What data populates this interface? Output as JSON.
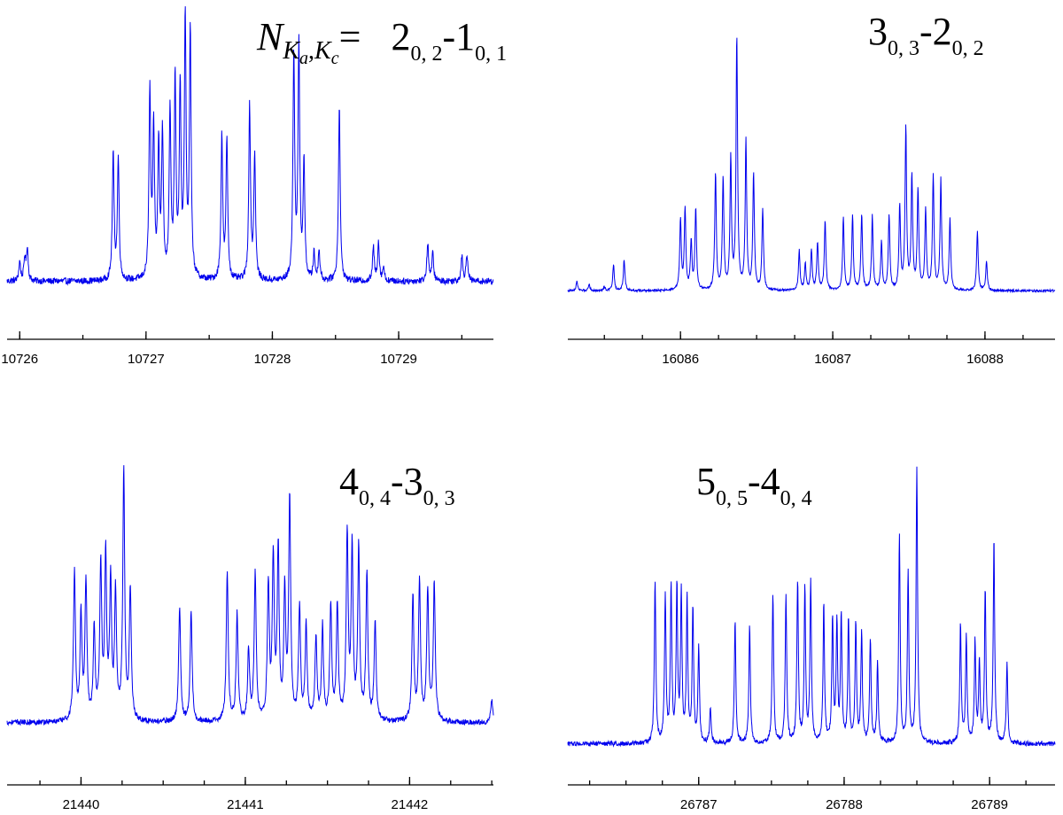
{
  "figure": {
    "line_color": "#0000ee",
    "axis_color": "#000000",
    "background": "#ffffff"
  },
  "chart_data": [
    {
      "type": "line",
      "title": {
        "prefix": "N",
        "prefix_sub": "K",
        "prefix_sub_a": "a",
        "prefix_sub_sep": ",",
        "prefix_sub_k2": "K",
        "prefix_sub_c": "c",
        "eq": "=",
        "upper": "2",
        "upper_sub": "0,2",
        "dash": "-",
        "lower": "1",
        "lower_sub": "0,1"
      },
      "xlim": [
        10725.9,
        10729.75
      ],
      "ylim": [
        0,
        1
      ],
      "xticks": [
        10726,
        10727,
        10728,
        10729
      ],
      "xtick_labels": [
        "10726",
        "10727",
        "10728",
        "10729"
      ],
      "minor_step": 0.5,
      "baseline": 0.04,
      "noise": 0.012,
      "gamma": 0.008,
      "peaks": [
        [
          10726.0,
          0.11
        ],
        [
          10726.04,
          0.12
        ],
        [
          10726.06,
          0.16
        ],
        [
          10726.74,
          0.5
        ],
        [
          10726.78,
          0.48
        ],
        [
          10727.03,
          0.72
        ],
        [
          10727.06,
          0.58
        ],
        [
          10727.1,
          0.52
        ],
        [
          10727.13,
          0.56
        ],
        [
          10727.19,
          0.65
        ],
        [
          10727.23,
          0.75
        ],
        [
          10727.27,
          0.72
        ],
        [
          10727.31,
          0.98
        ],
        [
          10727.35,
          0.94
        ],
        [
          10727.6,
          0.57
        ],
        [
          10727.64,
          0.55
        ],
        [
          10727.82,
          0.67
        ],
        [
          10727.86,
          0.49
        ],
        [
          10728.17,
          0.86
        ],
        [
          10728.21,
          0.88
        ],
        [
          10728.25,
          0.46
        ],
        [
          10728.33,
          0.14
        ],
        [
          10728.37,
          0.15
        ],
        [
          10728.53,
          0.68
        ],
        [
          10728.8,
          0.16
        ],
        [
          10728.84,
          0.18
        ],
        [
          10728.88,
          0.09
        ],
        [
          10729.23,
          0.18
        ],
        [
          10729.27,
          0.14
        ],
        [
          10729.5,
          0.13
        ],
        [
          10729.54,
          0.14
        ]
      ]
    },
    {
      "type": "line",
      "title": {
        "upper": "3",
        "upper_sub": "0,3",
        "dash": "-",
        "lower": "2",
        "lower_sub": "0,2"
      },
      "xlim": [
        85.26,
        88.46
      ],
      "x_offset": 16000,
      "ylim": [
        0,
        1
      ],
      "xticks": [
        16086,
        16087,
        16088
      ],
      "xtick_labels": [
        "16086",
        "16087",
        "16088"
      ],
      "minor_step": 0.25,
      "baseline": 0.025,
      "noise": 0.004,
      "gamma": 0.006,
      "peaks": [
        [
          85.32,
          0.06
        ],
        [
          85.4,
          0.05
        ],
        [
          85.5,
          0.04
        ],
        [
          85.56,
          0.12
        ],
        [
          85.63,
          0.14
        ],
        [
          86.0,
          0.28
        ],
        [
          86.03,
          0.32
        ],
        [
          86.07,
          0.2
        ],
        [
          86.1,
          0.32
        ],
        [
          86.23,
          0.45
        ],
        [
          86.28,
          0.43
        ],
        [
          86.33,
          0.5
        ],
        [
          86.37,
          0.95
        ],
        [
          86.43,
          0.57
        ],
        [
          86.48,
          0.45
        ],
        [
          86.54,
          0.32
        ],
        [
          86.78,
          0.17
        ],
        [
          86.82,
          0.12
        ],
        [
          86.86,
          0.17
        ],
        [
          86.9,
          0.2
        ],
        [
          86.95,
          0.28
        ],
        [
          87.07,
          0.29
        ],
        [
          87.13,
          0.3
        ],
        [
          87.19,
          0.3
        ],
        [
          87.26,
          0.3
        ],
        [
          87.32,
          0.2
        ],
        [
          87.37,
          0.3
        ],
        [
          87.44,
          0.33
        ],
        [
          87.48,
          0.62
        ],
        [
          87.52,
          0.44
        ],
        [
          87.56,
          0.39
        ],
        [
          87.61,
          0.32
        ],
        [
          87.66,
          0.44
        ],
        [
          87.71,
          0.43
        ],
        [
          87.77,
          0.29
        ],
        [
          87.95,
          0.24
        ],
        [
          88.01,
          0.13
        ]
      ]
    },
    {
      "type": "line",
      "title": {
        "upper": "4",
        "upper_sub": "0,4",
        "dash": "-",
        "lower": "3",
        "lower_sub": "0,3"
      },
      "xlim": [
        21439.55,
        21442.51
      ],
      "ylim": [
        0,
        1
      ],
      "xticks": [
        21440,
        21441,
        21442
      ],
      "xtick_labels": [
        "21440",
        "21441",
        "21442"
      ],
      "minor_step": 0.25,
      "baseline": 0.04,
      "noise": 0.01,
      "gamma": 0.007,
      "peaks": [
        [
          21439.96,
          0.58
        ],
        [
          21440.0,
          0.42
        ],
        [
          21440.03,
          0.55
        ],
        [
          21440.08,
          0.37
        ],
        [
          21440.12,
          0.6
        ],
        [
          21440.15,
          0.63
        ],
        [
          21440.18,
          0.55
        ],
        [
          21440.21,
          0.5
        ],
        [
          21440.26,
          0.95
        ],
        [
          21440.3,
          0.52
        ],
        [
          21440.6,
          0.46
        ],
        [
          21440.67,
          0.45
        ],
        [
          21440.89,
          0.58
        ],
        [
          21440.95,
          0.43
        ],
        [
          21441.02,
          0.3
        ],
        [
          21441.06,
          0.58
        ],
        [
          21441.14,
          0.53
        ],
        [
          21441.17,
          0.63
        ],
        [
          21441.2,
          0.66
        ],
        [
          21441.24,
          0.5
        ],
        [
          21441.27,
          0.85
        ],
        [
          21441.33,
          0.45
        ],
        [
          21441.37,
          0.39
        ],
        [
          21441.43,
          0.34
        ],
        [
          21441.47,
          0.38
        ],
        [
          21441.52,
          0.46
        ],
        [
          21441.56,
          0.46
        ],
        [
          21441.62,
          0.72
        ],
        [
          21441.65,
          0.66
        ],
        [
          21441.69,
          0.68
        ],
        [
          21441.74,
          0.58
        ],
        [
          21441.79,
          0.4
        ],
        [
          21442.02,
          0.5
        ],
        [
          21442.06,
          0.55
        ],
        [
          21442.11,
          0.52
        ],
        [
          21442.15,
          0.55
        ],
        [
          21442.5,
          0.12
        ]
      ]
    },
    {
      "type": "line",
      "title": {
        "upper": "5",
        "upper_sub": "0,5",
        "dash": "-",
        "lower": "4",
        "lower_sub": "0,4"
      },
      "xlim": [
        26786.1,
        26789.45
      ],
      "ylim": [
        0,
        1
      ],
      "xticks": [
        26787,
        26788,
        26789
      ],
      "xtick_labels": [
        "26787",
        "26788",
        "26789"
      ],
      "minor_step": 0.25,
      "baseline": 0.025,
      "noise": 0.008,
      "gamma": 0.006,
      "peaks": [
        [
          26786.7,
          0.58
        ],
        [
          26786.77,
          0.53
        ],
        [
          26786.81,
          0.55
        ],
        [
          26786.85,
          0.56
        ],
        [
          26786.88,
          0.53
        ],
        [
          26786.92,
          0.52
        ],
        [
          26786.96,
          0.48
        ],
        [
          26787.0,
          0.35
        ],
        [
          26787.08,
          0.14
        ],
        [
          26787.25,
          0.44
        ],
        [
          26787.35,
          0.43
        ],
        [
          26787.51,
          0.54
        ],
        [
          26787.6,
          0.53
        ],
        [
          26787.68,
          0.58
        ],
        [
          26787.73,
          0.55
        ],
        [
          26787.77,
          0.57
        ],
        [
          26787.86,
          0.5
        ],
        [
          26787.92,
          0.45
        ],
        [
          26787.95,
          0.43
        ],
        [
          26787.98,
          0.45
        ],
        [
          26788.03,
          0.45
        ],
        [
          26788.08,
          0.43
        ],
        [
          26788.12,
          0.4
        ],
        [
          26788.18,
          0.38
        ],
        [
          26788.23,
          0.3
        ],
        [
          26788.38,
          0.73
        ],
        [
          26788.44,
          0.6
        ],
        [
          26788.5,
          0.97
        ],
        [
          26788.8,
          0.43
        ],
        [
          26788.84,
          0.39
        ],
        [
          26788.9,
          0.37
        ],
        [
          26788.93,
          0.3
        ],
        [
          26788.97,
          0.55
        ],
        [
          26789.03,
          0.73
        ],
        [
          26789.12,
          0.3
        ]
      ]
    }
  ]
}
